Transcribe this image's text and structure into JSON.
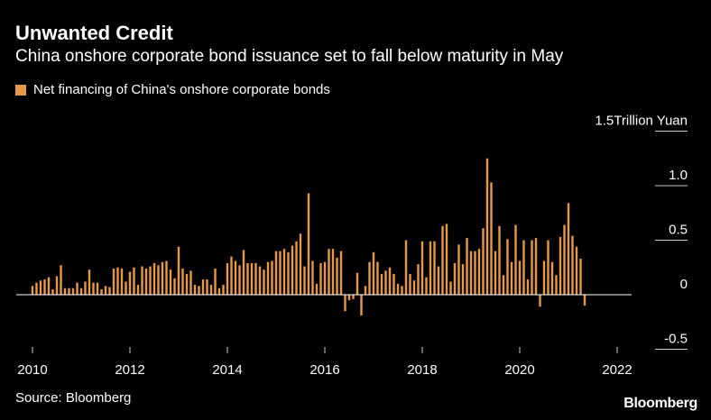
{
  "title": "Unwanted Credit",
  "subtitle": "China onshore corporate bond issuance set to fall below maturity in May",
  "legend_label": "Net financing of China's onshore corporate bonds",
  "source": "Source: Bloomberg",
  "brand": "Bloomberg",
  "colors": {
    "bar": "#e69a48",
    "background": "#000000",
    "text": "#ffffff",
    "zero_line": "#ffffff",
    "tick_line": "#cccccc"
  },
  "chart_data": {
    "type": "bar",
    "title": "Unwanted Credit",
    "subtitle": "China onshore corporate bond issuance set to fall below maturity in May",
    "series": [
      {
        "name": "Net financing of China's onshore corporate bonds"
      }
    ],
    "unit_label": "Trillion Yuan",
    "ylim": [
      -0.55,
      1.5
    ],
    "y_ticks": [
      {
        "value": 1.5,
        "label": "1.5Trillion Yuan"
      },
      {
        "value": 1.0,
        "label": "1.0"
      },
      {
        "value": 0.5,
        "label": "0.5"
      },
      {
        "value": 0,
        "label": "0"
      },
      {
        "value": -0.5,
        "label": "-0.5"
      }
    ],
    "x_ticks": [
      "2010",
      "2012",
      "2014",
      "2016",
      "2018",
      "2020",
      "2022"
    ],
    "x_start": "2010-01",
    "grid": false,
    "legend_position": "top-left",
    "values": [
      0.08,
      0.11,
      0.13,
      0.14,
      0.16,
      0.05,
      0.17,
      0.27,
      0.06,
      0.06,
      0.06,
      0.11,
      0.06,
      0.12,
      0.23,
      0.11,
      0.11,
      0.05,
      0.08,
      0.07,
      0.24,
      0.25,
      0.24,
      0.12,
      0.21,
      0.25,
      0.09,
      0.26,
      0.24,
      0.26,
      0.29,
      0.27,
      0.3,
      0.31,
      0.23,
      0.15,
      0.44,
      0.24,
      0.19,
      0.22,
      0.09,
      0.08,
      0.14,
      0.14,
      0.09,
      0.24,
      0.06,
      0.09,
      0.29,
      0.35,
      0.31,
      0.27,
      0.41,
      0.29,
      0.29,
      0.29,
      0.26,
      0.23,
      0.3,
      0.31,
      0.4,
      0.4,
      0.42,
      0.39,
      0.45,
      0.49,
      0.56,
      0.26,
      0.93,
      0.31,
      0.1,
      0.29,
      0.3,
      0.42,
      0.42,
      0.34,
      0.4,
      -0.15,
      -0.05,
      -0.04,
      0.2,
      -0.19,
      0.08,
      0.3,
      0.39,
      0.3,
      0.19,
      0.22,
      0.25,
      0.19,
      0.1,
      0.08,
      0.5,
      0.19,
      0.13,
      0.28,
      0.49,
      0.16,
      0.49,
      0.49,
      0.26,
      0.63,
      0.65,
      0.12,
      0.29,
      0.46,
      0.28,
      0.52,
      0.4,
      0.4,
      0.42,
      0.61,
      1.25,
      1.03,
      0.4,
      0.63,
      0.18,
      0.51,
      0.3,
      0.64,
      0.31,
      0.5,
      0.14,
      0.5,
      0.52,
      -0.11,
      0.31,
      0.5,
      0.3,
      0.18,
      0.53,
      0.64,
      0.84,
      0.54,
      0.44,
      0.33,
      -0.1
    ]
  }
}
